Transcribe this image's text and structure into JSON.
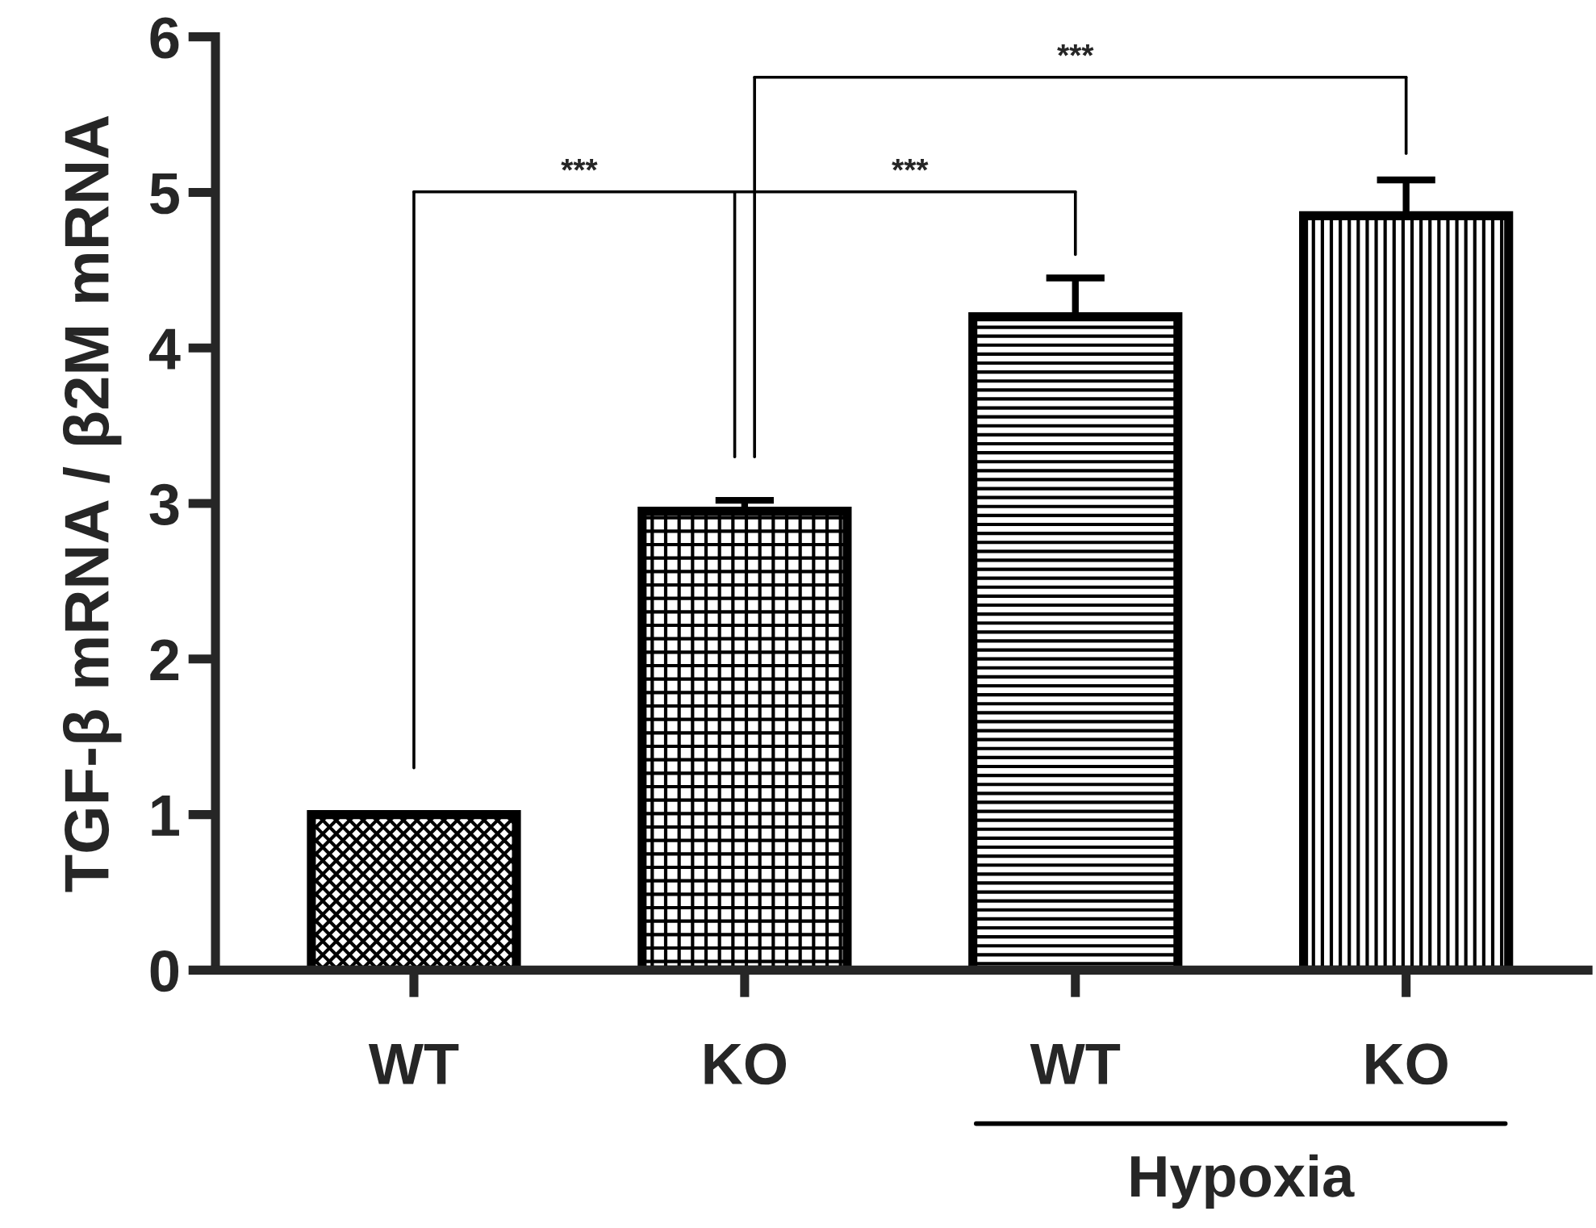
{
  "chart_data": {
    "type": "bar",
    "ylabel": "TGF-β mRNA / β2M mRNA",
    "categories": [
      "WT",
      "KO",
      "WT",
      "KO"
    ],
    "values": [
      1.0,
      2.95,
      4.2,
      4.85
    ],
    "errors": [
      null,
      0.07,
      0.25,
      0.23
    ],
    "color": "#000000",
    "ylim": [
      0,
      6
    ],
    "yticks": [
      0,
      1,
      2,
      3,
      4,
      5,
      6
    ],
    "grid": false,
    "legend": false,
    "annotations": [
      "***",
      "***",
      "***",
      "Hypoxia"
    ]
  }
}
